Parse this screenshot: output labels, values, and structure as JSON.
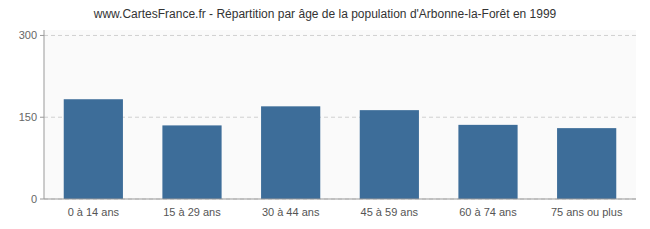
{
  "chart_data": {
    "type": "bar",
    "title": "www.CartesFrance.fr - Répartition par âge de la population d'Arbonne-la-Forêt en 1999",
    "categories": [
      "0 à 14 ans",
      "15 à 29 ans",
      "30 à 44 ans",
      "45 à 59 ans",
      "60 à 74 ans",
      "75 ans ou plus"
    ],
    "values": [
      183,
      135,
      170,
      163,
      136,
      130
    ],
    "color": "#3d6d99",
    "ylim": [
      0,
      310
    ],
    "yticks": [
      0,
      150,
      300
    ],
    "grid": true
  }
}
